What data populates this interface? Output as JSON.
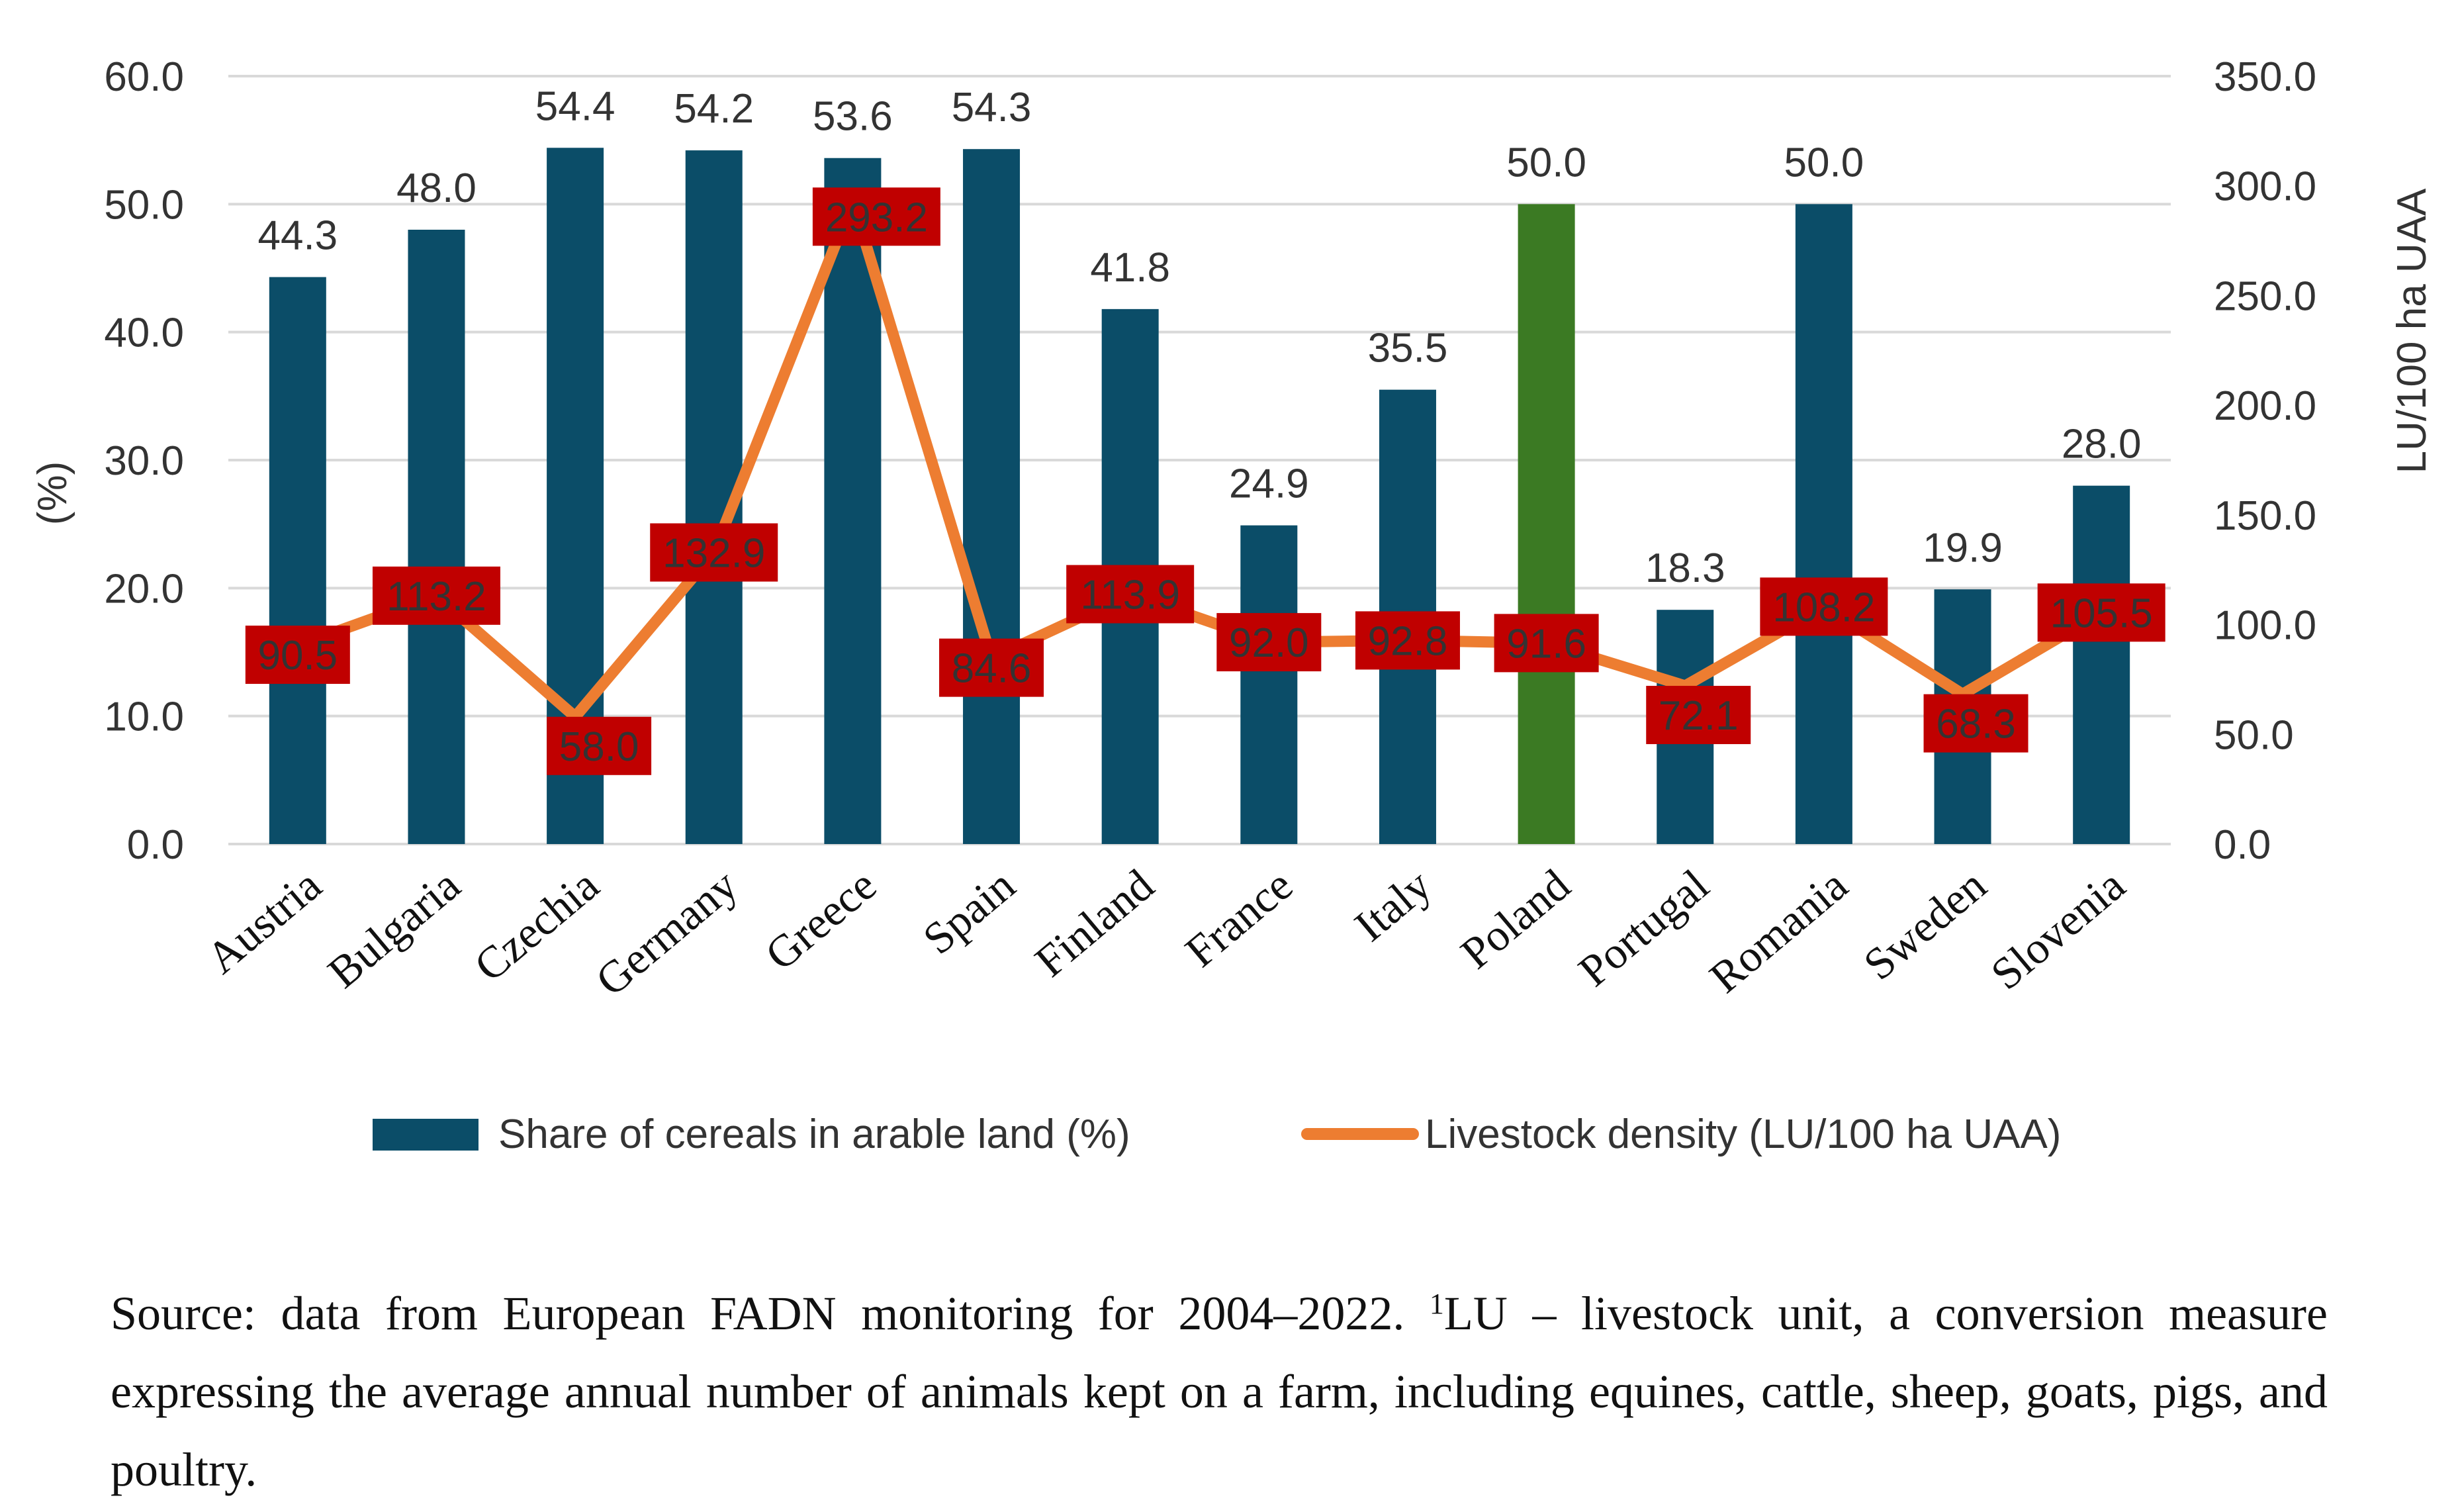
{
  "chart_data": {
    "type": "bar+line",
    "title": "",
    "categories": [
      "Austria",
      "Bulgaria",
      "Czechia",
      "Germany",
      "Greece",
      "Spain",
      "Finland",
      "France",
      "Italy",
      "Poland",
      "Portugal",
      "Romania",
      "Sweden",
      "Slovenia"
    ],
    "series": [
      {
        "name": "Share of cereals in arable land (%)",
        "type": "bar",
        "axis": "left",
        "values": [
          44.3,
          48.0,
          54.4,
          54.2,
          53.6,
          54.3,
          41.8,
          24.9,
          35.5,
          50.0,
          18.3,
          50.0,
          19.9,
          28.0
        ],
        "labels": [
          "44.3",
          "48.0",
          "54.4",
          "54.2",
          "53.6",
          "54.3",
          "41.8",
          "24.9",
          "35.5",
          "50.0",
          "18.3",
          "50.0",
          "19.9",
          "28.0"
        ],
        "color": "#0b4d68",
        "highlight": {
          "category": "Poland",
          "color": "#3b7a23"
        }
      },
      {
        "name": "Livestock density (LU/100 ha UAA)",
        "type": "line",
        "axis": "right",
        "values": [
          90.5,
          113.2,
          58.0,
          132.9,
          293.2,
          84.6,
          113.9,
          92.0,
          92.8,
          91.6,
          72.1,
          108.2,
          68.3,
          105.5
        ],
        "labels": [
          "90.5",
          "113.2",
          "58.0",
          "132.9",
          "293.2",
          "84.6",
          "113.9",
          "92.0",
          "92.8",
          "91.6",
          "72.1",
          "108.2",
          "68.3",
          "105.5"
        ],
        "color": "#ed7d31",
        "label_bg": "#c00000",
        "label_color": "#f4c7a6"
      }
    ],
    "y_left": {
      "label": "(%)",
      "range": [
        0,
        60
      ],
      "ticks": [
        "0.0",
        "10.0",
        "20.0",
        "30.0",
        "40.0",
        "50.0",
        "60.0"
      ]
    },
    "y_right": {
      "label": "LU/100 ha UAA",
      "range": [
        0,
        350
      ],
      "ticks": [
        "0.0",
        "50.0",
        "100.0",
        "150.0",
        "200.0",
        "250.0",
        "300.0",
        "350.0"
      ]
    },
    "grid": true,
    "legend_position": "bottom"
  },
  "note": {
    "text_before_sup": "Source: data from European FADN monitoring for 2004–2022. ",
    "sup": "1",
    "text_after_sup": "LU – livestock unit, a conversion measure expressing the average annual number of animals kept on a farm, including equines, cattle, sheep, goats, pigs, and poultry."
  }
}
